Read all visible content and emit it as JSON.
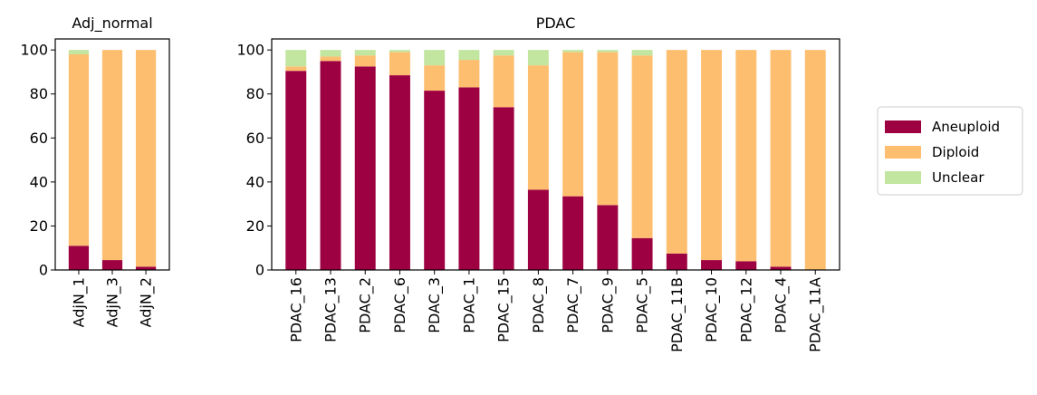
{
  "chart_data": [
    {
      "type": "bar",
      "stacked": true,
      "title": "Adj_normal",
      "categories": [
        "AdjN_1",
        "AdjN_3",
        "AdjN_2"
      ],
      "series": [
        {
          "name": "Aneuploid",
          "values": [
            11,
            4.5,
            1.5
          ]
        },
        {
          "name": "Diploid",
          "values": [
            87,
            95.5,
            98.5
          ]
        },
        {
          "name": "Unclear",
          "values": [
            2,
            0,
            0
          ]
        }
      ],
      "ylim": [
        0,
        105
      ],
      "yticks": [
        0,
        20,
        40,
        60,
        80,
        100
      ],
      "grid": false
    },
    {
      "type": "bar",
      "stacked": true,
      "title": "PDAC",
      "categories": [
        "PDAC_16",
        "PDAC_13",
        "PDAC_2",
        "PDAC_6",
        "PDAC_3",
        "PDAC_1",
        "PDAC_15",
        "PDAC_8",
        "PDAC_7",
        "PDAC_9",
        "PDAC_5",
        "PDAC_11B",
        "PDAC_10",
        "PDAC_12",
        "PDAC_4",
        "PDAC_11A"
      ],
      "series": [
        {
          "name": "Aneuploid",
          "values": [
            90.5,
            95,
            92.5,
            88.5,
            81.5,
            83,
            74,
            36.5,
            33.5,
            29.5,
            14.5,
            7.5,
            4.5,
            4,
            1.5,
            0
          ]
        },
        {
          "name": "Diploid",
          "values": [
            2,
            2,
            5,
            10.5,
            11.5,
            12.5,
            23.5,
            56.5,
            65.5,
            69.5,
            83,
            92.5,
            95.5,
            96,
            98.5,
            100
          ]
        },
        {
          "name": "Unclear",
          "values": [
            7.5,
            3,
            2.5,
            1,
            7,
            4.5,
            2.5,
            7,
            1,
            1,
            2.5,
            0,
            0,
            0,
            0,
            0
          ]
        }
      ],
      "ylim": [
        0,
        105
      ],
      "yticks": [
        0,
        20,
        40,
        60,
        80,
        100
      ],
      "grid": false
    }
  ],
  "legend": {
    "placement": "center-right",
    "entries": [
      {
        "label": "Aneuploid",
        "color": "#9e0142"
      },
      {
        "label": "Diploid",
        "color": "#fdbf6f"
      },
      {
        "label": "Unclear",
        "color": "#c2e5a0"
      }
    ]
  }
}
